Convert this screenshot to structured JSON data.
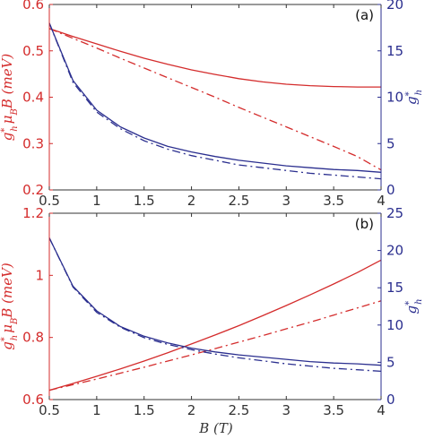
{
  "colors": {
    "red": "#d42c2c",
    "blue": "#2b2f8f",
    "axis": "#333333"
  },
  "xlabel": "B (T)",
  "chart_data": [
    {
      "type": "line",
      "panel_label": "(a)",
      "xlim": [
        0.5,
        4
      ],
      "x_ticks": [
        "0.5",
        "1",
        "1.5",
        "2",
        "2.5",
        "3",
        "3.5",
        "4"
      ],
      "ylabel_left": "g*_h μ_B B (meV)",
      "ylabel_right": "g*_h",
      "ylim_left": [
        0.2,
        0.6
      ],
      "ylim_right": [
        0,
        20
      ],
      "yticks_left": [
        "0.2",
        "0.3",
        "0.4",
        "0.5",
        "0.6"
      ],
      "yticks_right": [
        "0",
        "5",
        "10",
        "15",
        "20"
      ],
      "x": [
        0.5,
        0.75,
        1.0,
        1.25,
        1.5,
        1.75,
        2.0,
        2.25,
        2.5,
        2.75,
        3.0,
        3.25,
        3.5,
        3.75,
        4.0
      ],
      "series": [
        {
          "axis": "left",
          "color": "red",
          "dash": "solid",
          "values": [
            0.548,
            0.531,
            0.515,
            0.499,
            0.484,
            0.471,
            0.459,
            0.449,
            0.44,
            0.433,
            0.428,
            0.425,
            0.423,
            0.422,
            0.422
          ]
        },
        {
          "axis": "left",
          "color": "red",
          "dash": "dashdot",
          "values": [
            0.548,
            0.527,
            0.506,
            0.484,
            0.463,
            0.442,
            0.421,
            0.4,
            0.378,
            0.357,
            0.336,
            0.315,
            0.294,
            0.272,
            0.243
          ]
        },
        {
          "axis": "right",
          "color": "blue",
          "dash": "solid",
          "values": [
            18.0,
            11.8,
            8.6,
            6.8,
            5.6,
            4.7,
            4.1,
            3.6,
            3.2,
            2.9,
            2.6,
            2.4,
            2.2,
            2.1,
            1.9
          ]
        },
        {
          "axis": "right",
          "color": "blue",
          "dash": "dashdot",
          "values": [
            18.0,
            11.6,
            8.4,
            6.6,
            5.3,
            4.4,
            3.7,
            3.2,
            2.7,
            2.4,
            2.1,
            1.8,
            1.6,
            1.4,
            1.2
          ]
        }
      ]
    },
    {
      "type": "line",
      "panel_label": "(b)",
      "xlim": [
        0.5,
        4
      ],
      "x_ticks": [
        "0.5",
        "1",
        "1.5",
        "2",
        "2.5",
        "3",
        "3.5",
        "4"
      ],
      "ylabel_left": "g*_h μ_B B (meV)",
      "ylabel_right": "g*_h",
      "ylim_left": [
        0.6,
        1.2
      ],
      "ylim_right": [
        0,
        25
      ],
      "yticks_left": [
        "0.6",
        "0.8",
        "1",
        "1.2"
      ],
      "yticks_right": [
        "0",
        "5",
        "10",
        "15",
        "20",
        "25"
      ],
      "x": [
        0.5,
        0.75,
        1.0,
        1.25,
        1.5,
        1.75,
        2.0,
        2.25,
        2.5,
        2.75,
        3.0,
        3.25,
        3.5,
        3.75,
        4.0
      ],
      "series": [
        {
          "axis": "left",
          "color": "red",
          "dash": "solid",
          "values": [
            0.63,
            0.652,
            0.675,
            0.699,
            0.724,
            0.751,
            0.779,
            0.808,
            0.838,
            0.87,
            0.903,
            0.937,
            0.972,
            1.009,
            1.049
          ]
        },
        {
          "axis": "left",
          "color": "red",
          "dash": "dashdot",
          "values": [
            0.63,
            0.648,
            0.666,
            0.685,
            0.704,
            0.724,
            0.744,
            0.764,
            0.785,
            0.806,
            0.828,
            0.849,
            0.872,
            0.895,
            0.918
          ]
        },
        {
          "axis": "right",
          "color": "blue",
          "dash": "solid",
          "values": [
            21.7,
            15.2,
            11.9,
            9.8,
            8.5,
            7.6,
            6.9,
            6.4,
            6.0,
            5.7,
            5.4,
            5.1,
            4.9,
            4.8,
            4.6
          ]
        },
        {
          "axis": "right",
          "color": "blue",
          "dash": "dashdot",
          "values": [
            21.7,
            15.1,
            11.7,
            9.7,
            8.3,
            7.4,
            6.7,
            6.1,
            5.6,
            5.2,
            4.8,
            4.5,
            4.2,
            4.0,
            3.8
          ]
        }
      ]
    }
  ]
}
